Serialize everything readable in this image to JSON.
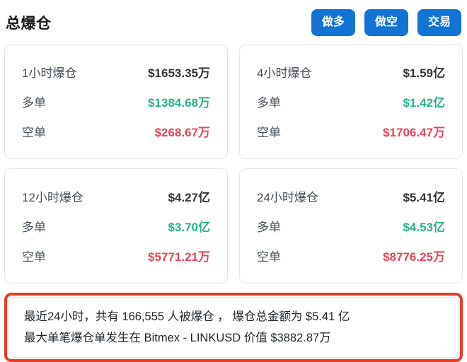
{
  "header": {
    "title": "总爆仓",
    "buttons": [
      {
        "label": "做多"
      },
      {
        "label": "做空"
      },
      {
        "label": "交易"
      }
    ]
  },
  "cards": [
    {
      "title": "1小时爆仓",
      "total": "$1653.35万",
      "long_label": "多单",
      "long_value": "$1384.68万",
      "short_label": "空单",
      "short_value": "$268.67万"
    },
    {
      "title": "4小时爆仓",
      "total": "$1.59亿",
      "long_label": "多单",
      "long_value": "$1.42亿",
      "short_label": "空单",
      "short_value": "$1706.47万"
    },
    {
      "title": "12小时爆仓",
      "total": "$4.27亿",
      "long_label": "多单",
      "long_value": "$3.70亿",
      "short_label": "空单",
      "short_value": "$5771.21万"
    },
    {
      "title": "24小时爆仓",
      "total": "$5.41亿",
      "long_label": "多单",
      "long_value": "$4.53亿",
      "short_label": "空单",
      "short_value": "$8776.25万"
    }
  ],
  "summary": {
    "line1": "最近24小时，共有 166,555 人被爆仓 ， 爆仓总金额为 $5.41 亿",
    "line2": "最大单笔爆仓单发生在 Bitmex - LINKUSD 价值 $3882.87万"
  },
  "colors": {
    "accent_blue": "#1173d4",
    "long_green": "#2bb18b",
    "short_red": "#e74556",
    "annotation_red": "#ea3a26",
    "card_border": "#e5e6e9"
  }
}
